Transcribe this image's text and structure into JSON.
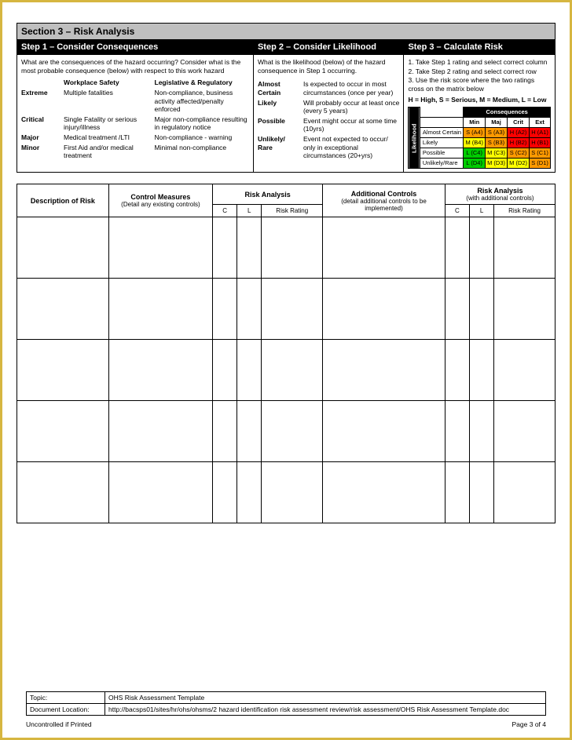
{
  "section": {
    "title": "Section 3 – Risk Analysis"
  },
  "steps": {
    "s1": "Step 1 – Consider Consequences",
    "s2": "Step 2 – Consider Likelihood",
    "s3": "Step 3 – Calculate Risk"
  },
  "guide": {
    "s1_intro": "What are the consequences of the hazard occurring? Consider what is the most probable consequence (below) with respect to this work hazard",
    "s1_head_ws": "Workplace Safety",
    "s1_head_lr": "Legislative & Regulatory",
    "rows1": [
      {
        "level": "Extreme",
        "ws": "Multiple fatalities",
        "lr": "Non-compliance, business activity affected/penalty enforced"
      },
      {
        "level": "Critical",
        "ws": "Single Fatality or serious injury/illness",
        "lr": "Major non-compliance resulting in regulatory notice"
      },
      {
        "level": "Major",
        "ws": "Medical treatment /LTI",
        "lr": "Non-compliance - warning"
      },
      {
        "level": "Minor",
        "ws": "First Aid and/or medical treatment",
        "lr": "Minimal non-compliance"
      }
    ],
    "s2_intro": "What is the likelihood (below) of the hazard consequence in Step 1 occurring.",
    "rows2": [
      {
        "level": "Almost Certain",
        "desc": "Is expected to occur in most circumstances (once per year)"
      },
      {
        "level": "Likely",
        "desc": "Will probably occur at least once (every 5 years)"
      },
      {
        "level": "Possible",
        "desc": "Event might occur at some time (10yrs)"
      },
      {
        "level": "Unlikely/ Rare",
        "desc": "Event not expected to occur/ only in exceptional circumstances (20+yrs)"
      }
    ],
    "s3_steps": [
      "1. Take Step 1 rating and select correct column",
      "2. Take Step 2 rating and select correct row",
      "3. Use the risk score where the two ratings cross on the matrix below"
    ],
    "s3_legend": "H = High, S = Serious, M = Medium, L = Low"
  },
  "matrix": {
    "conseq_label": "Consequences",
    "like_label": "Likelihood",
    "cols": [
      "Min",
      "Maj",
      "Crit",
      "Ext"
    ],
    "rows": [
      {
        "label": "Almost Certain",
        "cells": [
          {
            "t": "S (A4)",
            "c": "S"
          },
          {
            "t": "S (A3)",
            "c": "S"
          },
          {
            "t": "H (A2)",
            "c": "H"
          },
          {
            "t": "H (A1)",
            "c": "H"
          }
        ]
      },
      {
        "label": "Likely",
        "cells": [
          {
            "t": "M (B4)",
            "c": "M"
          },
          {
            "t": "S (B3)",
            "c": "S"
          },
          {
            "t": "H (B2)",
            "c": "H"
          },
          {
            "t": "H (B1)",
            "c": "H"
          }
        ]
      },
      {
        "label": "Possible",
        "cells": [
          {
            "t": "L (C4)",
            "c": "L"
          },
          {
            "t": "M (C3)",
            "c": "M"
          },
          {
            "t": "S (C2)",
            "c": "S"
          },
          {
            "t": "S (C1)",
            "c": "S"
          }
        ]
      },
      {
        "label": "Unlikely/Rare",
        "cells": [
          {
            "t": "L (D4)",
            "c": "L"
          },
          {
            "t": "M (D3)",
            "c": "M"
          },
          {
            "t": "M (D2)",
            "c": "M"
          },
          {
            "t": "S (D1)",
            "c": "S"
          }
        ]
      }
    ]
  },
  "entry": {
    "h_desc": "Description of Risk",
    "h_ctrl": "Control Measures",
    "h_ctrl_sub": "(Detail any existing controls)",
    "h_risk": "Risk Analysis",
    "h_addl": "Additional Controls",
    "h_addl_sub": "(detail additional controls to be implemented)",
    "h_risk2": "Risk Analysis",
    "h_risk2_sub": "(with additional controls)",
    "sub_c": "C",
    "sub_l": "L",
    "sub_rr": "Risk Rating",
    "row_count": 5
  },
  "docinfo": {
    "topic_lbl": "Topic:",
    "topic_val": "OHS Risk Assessment Template",
    "loc_lbl": "Document Location:",
    "loc_val": "http://bacsps01/sites/hr/ohs/ohsms/2 hazard identification risk assessment review/risk assessment/OHS Risk Assessment Template.doc"
  },
  "footer": {
    "left": "Uncontrolled if Printed",
    "right": "Page 3 of 4"
  },
  "colors": {
    "H": "#ff0000",
    "S": "#ff9900",
    "M": "#ffff00",
    "L": "#00cc00"
  }
}
